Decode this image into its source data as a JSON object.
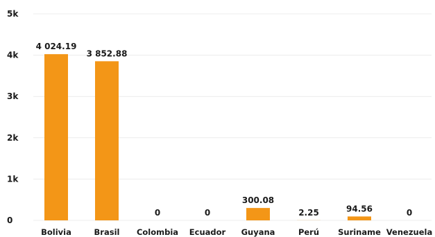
{
  "chart_data": {
    "type": "bar",
    "categories": [
      "Bolivia",
      "Brasil",
      "Colombia",
      "Ecuador",
      "Guyana",
      "Perú",
      "Suriname",
      "Venezuela"
    ],
    "values": [
      4024.19,
      3852.88,
      0,
      0,
      300.08,
      2.25,
      94.56,
      0
    ],
    "data_labels": [
      "4 024.19",
      "3 852.88",
      "0",
      "0",
      "300.08",
      "2.25",
      "94.56",
      "0"
    ],
    "y_ticks": [
      0,
      1000,
      2000,
      3000,
      4000,
      5000
    ],
    "y_tick_labels": [
      "0",
      "1k",
      "2k",
      "3k",
      "4k",
      "5k"
    ],
    "ylim": [
      0,
      5000
    ],
    "title": "",
    "xlabel": "",
    "ylabel": "",
    "grid": true,
    "bar_color": "#f39617"
  }
}
